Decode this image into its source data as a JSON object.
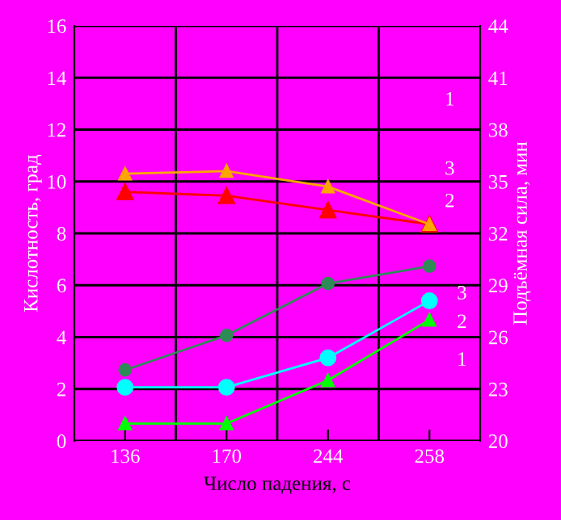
{
  "chart_data": {
    "type": "line",
    "xlabel": "Число падения, с",
    "ylabel": "Кислотность, град",
    "y2label": "Подъёмная сила, мин",
    "categories": [
      "136",
      "170",
      "244",
      "258"
    ],
    "series": [
      {
        "color": "#ffa500",
        "marker": "triangle",
        "values": [
          10.3,
          10.4,
          9.8,
          8.35
        ]
      },
      {
        "color": "#ff0000",
        "marker": "triangle",
        "values": [
          9.6,
          9.45,
          8.9,
          8.35
        ]
      },
      {
        "color": "#2e8b57",
        "marker": "circle",
        "axis": "y2",
        "values": [
          24.1,
          26.1,
          29.1,
          30.1
        ]
      },
      {
        "color": "#00ffff",
        "marker": "circle",
        "axis": "y2",
        "values": [
          23.1,
          23.1,
          24.8,
          28.1
        ]
      },
      {
        "color": "#00ff00",
        "marker": "triangle",
        "axis": "y2",
        "values": [
          21.0,
          21.0,
          23.5,
          27.0
        ]
      }
    ],
    "annotations": [
      "1",
      "3",
      "2",
      "3",
      "2",
      "1"
    ],
    "ylim": [
      0,
      16
    ],
    "yticks": [
      0,
      2,
      4,
      6,
      8,
      10,
      12,
      14,
      16
    ],
    "y2lim": [
      20,
      44
    ],
    "y2ticks": [
      20,
      23,
      26,
      29,
      32,
      35,
      38,
      41,
      44
    ],
    "grid": true,
    "line_style": "solid"
  }
}
